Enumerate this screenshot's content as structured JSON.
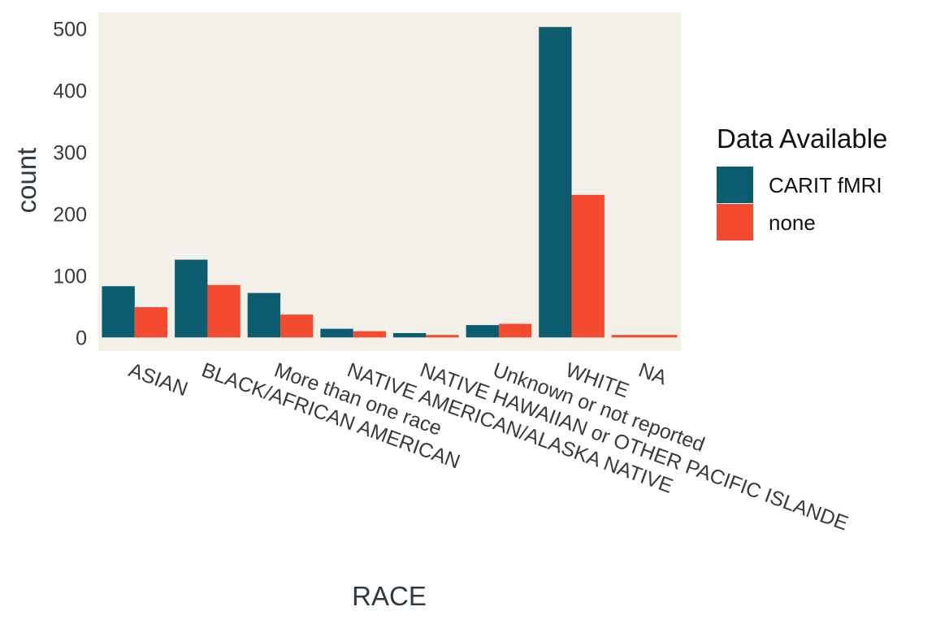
{
  "chart_data": {
    "type": "bar",
    "title": "",
    "xlabel": "RACE",
    "ylabel": "count",
    "ylim": [
      -22,
      527
    ],
    "yticks": [
      0,
      100,
      200,
      300,
      400,
      500
    ],
    "categories": [
      "ASIAN",
      "BLACK/AFRICAN AMERICAN",
      "More than one race",
      "NATIVE AMERICAN/ALASKA NATIVE",
      "NATIVE HAWAIIAN or OTHER PACIFIC ISLANDE",
      "Unknown or not reported",
      "WHITE",
      "NA"
    ],
    "series": [
      {
        "name": "CARIT fMRI",
        "color": "#0b5c6e",
        "values": [
          83,
          126,
          72,
          14,
          7,
          20,
          503,
          null
        ]
      },
      {
        "name": "none",
        "color": "#f44a2f",
        "values": [
          49,
          85,
          37,
          10,
          4,
          22,
          231,
          4
        ]
      }
    ],
    "legend": {
      "title": "Data Available",
      "position": "right"
    },
    "panel_background": "#f3f0ea",
    "grid": false
  }
}
